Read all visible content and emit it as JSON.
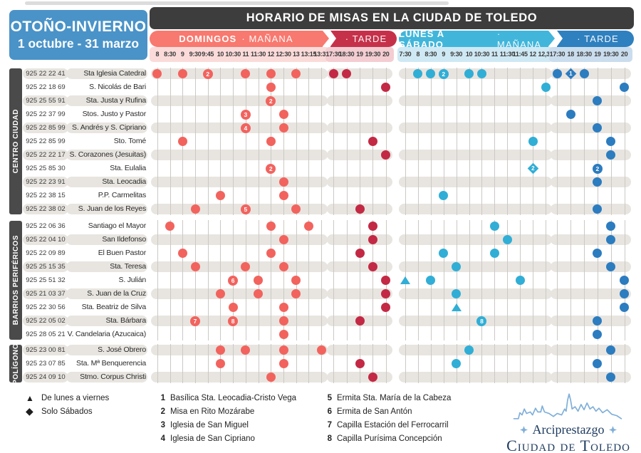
{
  "page": {
    "season": {
      "line1": "OTOÑO-INVIERNO",
      "line2": "1 octubre - 31 marzo"
    },
    "title": "HORARIO DE MISAS EN LA CIUDAD DE TOLEDO"
  },
  "colors": {
    "season_box": "#4A93C8",
    "title_bar": "#3D3D3D",
    "sidebar": "#4A4A4A",
    "row_band": "#E8E5E0",
    "logo_navy": "#1D3A5F",
    "logo_blue": "#7FAFD9"
  },
  "schedule": {
    "groups": [
      {
        "label_bold": "DOMINGOS",
        "label_light": "· MAÑANA",
        "times": [
          "8",
          "8:30",
          "9",
          "9:30",
          "9:45",
          "10",
          "10:30",
          "11",
          "11:30",
          "12",
          "12:30",
          "13",
          "13:15",
          "13:30"
        ],
        "colors": {
          "band": "#F8796F",
          "bg": "#FBDBDA",
          "dot": "#F2635E"
        }
      },
      {
        "label_bold": "",
        "label_light": "· TARDE",
        "times": [
          "17:30",
          "18:30",
          "19",
          "19:30",
          "20"
        ],
        "colors": {
          "band": "#C6314A",
          "bg": "#F3CDD2",
          "dot": "#C32944"
        }
      },
      {
        "label_bold": "LUNES A SÁBADO",
        "label_light": "· MAÑANA",
        "times": [
          "7:30",
          "8",
          "8:30",
          "9",
          "9:30",
          "10",
          "10:30",
          "11",
          "11:30",
          "11:45",
          "12",
          "12,30"
        ],
        "colors": {
          "band": "#41B6DA",
          "bg": "#CFE9F4",
          "dot": "#30AED6"
        }
      },
      {
        "label_bold": "",
        "label_light": "· TARDE",
        "times": [
          "17:30",
          "18",
          "18:30",
          "19",
          "19:30",
          "20"
        ],
        "colors": {
          "band": "#2F80BF",
          "bg": "#CADDEE",
          "dot": "#2C7CC0"
        }
      }
    ],
    "sections": [
      {
        "label": "CENTRO CIUDAD",
        "rows": [
          {
            "phone": "925 22 22 41",
            "church": "Sta Iglesia Catedral",
            "banded": true,
            "marks": [
              [
                0,
                "8",
                "dot"
              ],
              [
                0,
                "9",
                "dot"
              ],
              [
                0,
                "9:45",
                "badge",
                "2"
              ],
              [
                0,
                "11",
                "dot"
              ],
              [
                0,
                "12",
                "dot"
              ],
              [
                0,
                "13",
                "dot"
              ],
              [
                1,
                "17:30",
                "dot"
              ],
              [
                1,
                "18:30",
                "dot"
              ],
              [
                2,
                "8",
                "dot"
              ],
              [
                2,
                "8:30",
                "dot"
              ],
              [
                2,
                "9",
                "badge",
                "2"
              ],
              [
                2,
                "10",
                "dot"
              ],
              [
                2,
                "10:30",
                "dot"
              ],
              [
                3,
                "17:30",
                "dot"
              ],
              [
                3,
                "18",
                "diamond",
                "1"
              ],
              [
                3,
                "18:30",
                "dot"
              ]
            ]
          },
          {
            "phone": "925 22 18 69",
            "church": "S. Nicolás de Bari",
            "banded": false,
            "marks": [
              [
                0,
                "12",
                "dot"
              ],
              [
                1,
                "20",
                "dot"
              ],
              [
                2,
                "12,30",
                "dot"
              ],
              [
                3,
                "20",
                "dot"
              ]
            ]
          },
          {
            "phone": "925 25 55 91",
            "church": "Sta. Justa y Rufina",
            "banded": true,
            "marks": [
              [
                0,
                "12",
                "badge",
                "2"
              ],
              [
                3,
                "19",
                "dot"
              ]
            ]
          },
          {
            "phone": "925 22 37 99",
            "church": "Stos. Justo y Pastor",
            "banded": false,
            "marks": [
              [
                0,
                "11",
                "badge",
                "3"
              ],
              [
                0,
                "12:30",
                "dot"
              ],
              [
                3,
                "18",
                "dot"
              ]
            ]
          },
          {
            "phone": "925 22 85 99",
            "church": "S. Andrés y S. Cipriano",
            "banded": true,
            "marks": [
              [
                0,
                "11",
                "badge",
                "4"
              ],
              [
                0,
                "12:30",
                "dot"
              ],
              [
                3,
                "19",
                "dot"
              ]
            ]
          },
          {
            "phone": "925 22 85 99",
            "church": "Sto. Tomé",
            "banded": false,
            "marks": [
              [
                0,
                "9",
                "dot"
              ],
              [
                0,
                "12",
                "dot"
              ],
              [
                1,
                "19:30",
                "dot"
              ],
              [
                2,
                "12",
                "dot"
              ],
              [
                3,
                "19:30",
                "dot"
              ]
            ]
          },
          {
            "phone": "925 22 22 17",
            "church": "S. Corazones (Jesuitas)",
            "banded": true,
            "marks": [
              [
                1,
                "20",
                "dot"
              ],
              [
                3,
                "19:30",
                "dot"
              ]
            ]
          },
          {
            "phone": "925 25 85 30",
            "church": "Sta. Eulalia",
            "banded": false,
            "marks": [
              [
                0,
                "12",
                "badge",
                "2"
              ],
              [
                2,
                "12",
                "diamond",
                "2"
              ],
              [
                3,
                "19",
                "badge",
                "2"
              ]
            ]
          },
          {
            "phone": "925 22 23 91",
            "church": "Sta. Leocadia",
            "banded": true,
            "marks": [
              [
                0,
                "12:30",
                "dot"
              ],
              [
                3,
                "19",
                "dot"
              ]
            ]
          },
          {
            "phone": "925 22 38 15",
            "church": "P.P. Carmelitas",
            "banded": false,
            "marks": [
              [
                0,
                "10",
                "dot"
              ],
              [
                0,
                "12:30",
                "dot"
              ],
              [
                2,
                "9",
                "dot"
              ]
            ]
          },
          {
            "phone": "925 22 38 02",
            "church": "S. Juan de los Reyes",
            "banded": true,
            "marks": [
              [
                0,
                "9:30",
                "dot"
              ],
              [
                0,
                "11",
                "badge",
                "5"
              ],
              [
                0,
                "13",
                "dot"
              ],
              [
                1,
                "19",
                "dot"
              ],
              [
                3,
                "19",
                "dot"
              ]
            ]
          }
        ]
      },
      {
        "label": "BARRIOS PERIFÉRICOS",
        "rows": [
          {
            "phone": "925 22 06 36",
            "church": "Santiago el Mayor",
            "banded": false,
            "marks": [
              [
                0,
                "8:30",
                "dot"
              ],
              [
                0,
                "12",
                "dot"
              ],
              [
                0,
                "13:15",
                "dot"
              ],
              [
                1,
                "19:30",
                "dot"
              ],
              [
                2,
                "11",
                "dot"
              ],
              [
                3,
                "19:30",
                "dot"
              ]
            ]
          },
          {
            "phone": "925 22 04 10",
            "church": "San Ildefonso",
            "banded": true,
            "marks": [
              [
                0,
                "12:30",
                "dot"
              ],
              [
                1,
                "19:30",
                "dot"
              ],
              [
                2,
                "11:30",
                "dot"
              ],
              [
                3,
                "19:30",
                "dot"
              ]
            ]
          },
          {
            "phone": "925 22 09 89",
            "church": "El Buen Pastor",
            "banded": false,
            "marks": [
              [
                0,
                "9",
                "dot"
              ],
              [
                0,
                "12",
                "dot"
              ],
              [
                1,
                "19",
                "dot"
              ],
              [
                2,
                "9",
                "dot"
              ],
              [
                2,
                "11",
                "dot"
              ],
              [
                3,
                "19",
                "dot"
              ]
            ]
          },
          {
            "phone": "925 25 15 35",
            "church": "Sta. Teresa",
            "banded": true,
            "marks": [
              [
                0,
                "9:30",
                "dot"
              ],
              [
                0,
                "11",
                "dot"
              ],
              [
                0,
                "12:30",
                "dot"
              ],
              [
                1,
                "19:30",
                "dot"
              ],
              [
                2,
                "9:30",
                "dot"
              ],
              [
                3,
                "19:30",
                "dot"
              ]
            ]
          },
          {
            "phone": "925 25 51 32",
            "church": "S. Julián",
            "banded": false,
            "marks": [
              [
                0,
                "10:30",
                "badge",
                "6"
              ],
              [
                0,
                "11:30",
                "dot"
              ],
              [
                0,
                "13",
                "dot"
              ],
              [
                1,
                "20",
                "dot"
              ],
              [
                2,
                "7:30",
                "triangle"
              ],
              [
                2,
                "8:30",
                "dot"
              ],
              [
                2,
                "11:45",
                "dot"
              ],
              [
                3,
                "20",
                "dot"
              ]
            ]
          },
          {
            "phone": "925 21 03 37",
            "church": "S. Juan de la Cruz",
            "banded": true,
            "marks": [
              [
                0,
                "10",
                "dot"
              ],
              [
                0,
                "11:30",
                "dot"
              ],
              [
                0,
                "13",
                "dot"
              ],
              [
                1,
                "20",
                "dot"
              ],
              [
                2,
                "9:30",
                "dot"
              ],
              [
                3,
                "20",
                "dot"
              ]
            ]
          },
          {
            "phone": "925 22 30 56",
            "church": "Sta. Beatriz de Silva",
            "banded": false,
            "marks": [
              [
                0,
                "10:30",
                "dot"
              ],
              [
                0,
                "12:30",
                "dot"
              ],
              [
                1,
                "20",
                "dot"
              ],
              [
                2,
                "9:30",
                "triangle"
              ],
              [
                3,
                "20",
                "dot"
              ]
            ]
          },
          {
            "phone": "925 22 05 02",
            "church": "Sta. Bárbara",
            "banded": true,
            "marks": [
              [
                0,
                "9:30",
                "badge",
                "7"
              ],
              [
                0,
                "10:30",
                "badge",
                "8"
              ],
              [
                0,
                "12:30",
                "dot"
              ],
              [
                1,
                "19",
                "dot"
              ],
              [
                2,
                "10:30",
                "badge",
                "8"
              ],
              [
                3,
                "19",
                "dot"
              ]
            ]
          },
          {
            "phone": "925 28 05 21",
            "church": "V. Candelaria (Azucaica)",
            "banded": false,
            "marks": [
              [
                0,
                "12:30",
                "dot"
              ],
              [
                3,
                "19",
                "dot"
              ]
            ]
          }
        ]
      },
      {
        "label": "POLÍGONO",
        "rows": [
          {
            "phone": "925 23 00 81",
            "church": "S. José Obrero",
            "banded": true,
            "marks": [
              [
                0,
                "10",
                "dot"
              ],
              [
                0,
                "11",
                "dot"
              ],
              [
                0,
                "12:30",
                "dot"
              ],
              [
                0,
                "13:30",
                "dot"
              ],
              [
                2,
                "10",
                "dot"
              ],
              [
                3,
                "19:30",
                "dot"
              ]
            ]
          },
          {
            "phone": "925 23 07 85",
            "church": "Sta. Mª Benquerencia",
            "banded": false,
            "marks": [
              [
                0,
                "10",
                "dot"
              ],
              [
                0,
                "12:30",
                "dot"
              ],
              [
                1,
                "19",
                "dot"
              ],
              [
                2,
                "9:30",
                "dot"
              ],
              [
                3,
                "19",
                "dot"
              ]
            ]
          },
          {
            "phone": "925 24 09 10",
            "church": "Stmo. Corpus Christi",
            "banded": true,
            "marks": [
              [
                0,
                "12",
                "dot"
              ],
              [
                1,
                "19:30",
                "dot"
              ],
              [
                3,
                "19:30",
                "dot"
              ]
            ]
          }
        ]
      }
    ]
  },
  "legend": {
    "symbols": [
      {
        "shape": "triangle",
        "label": "De lunes a viernes"
      },
      {
        "shape": "diamond",
        "label": "Solo Sábados"
      }
    ],
    "numbers": [
      {
        "n": "1",
        "label": "Basílica Sta. Leocadia-Cristo Vega"
      },
      {
        "n": "2",
        "label": "Misa en Rito Mozárabe"
      },
      {
        "n": "3",
        "label": "Iglesia de San Miguel"
      },
      {
        "n": "4",
        "label": "Iglesia de San Cipriano"
      },
      {
        "n": "5",
        "label": "Ermita Sta. María de la Cabeza"
      },
      {
        "n": "6",
        "label": "Ermita de San Antón"
      },
      {
        "n": "7",
        "label": "Capilla Estación del Ferrocarril"
      },
      {
        "n": "8",
        "label": "Capilla Purísima Concepción"
      }
    ]
  },
  "logo": {
    "line1": "Arciprestazgo",
    "line2": "Ciudad de Toledo"
  }
}
